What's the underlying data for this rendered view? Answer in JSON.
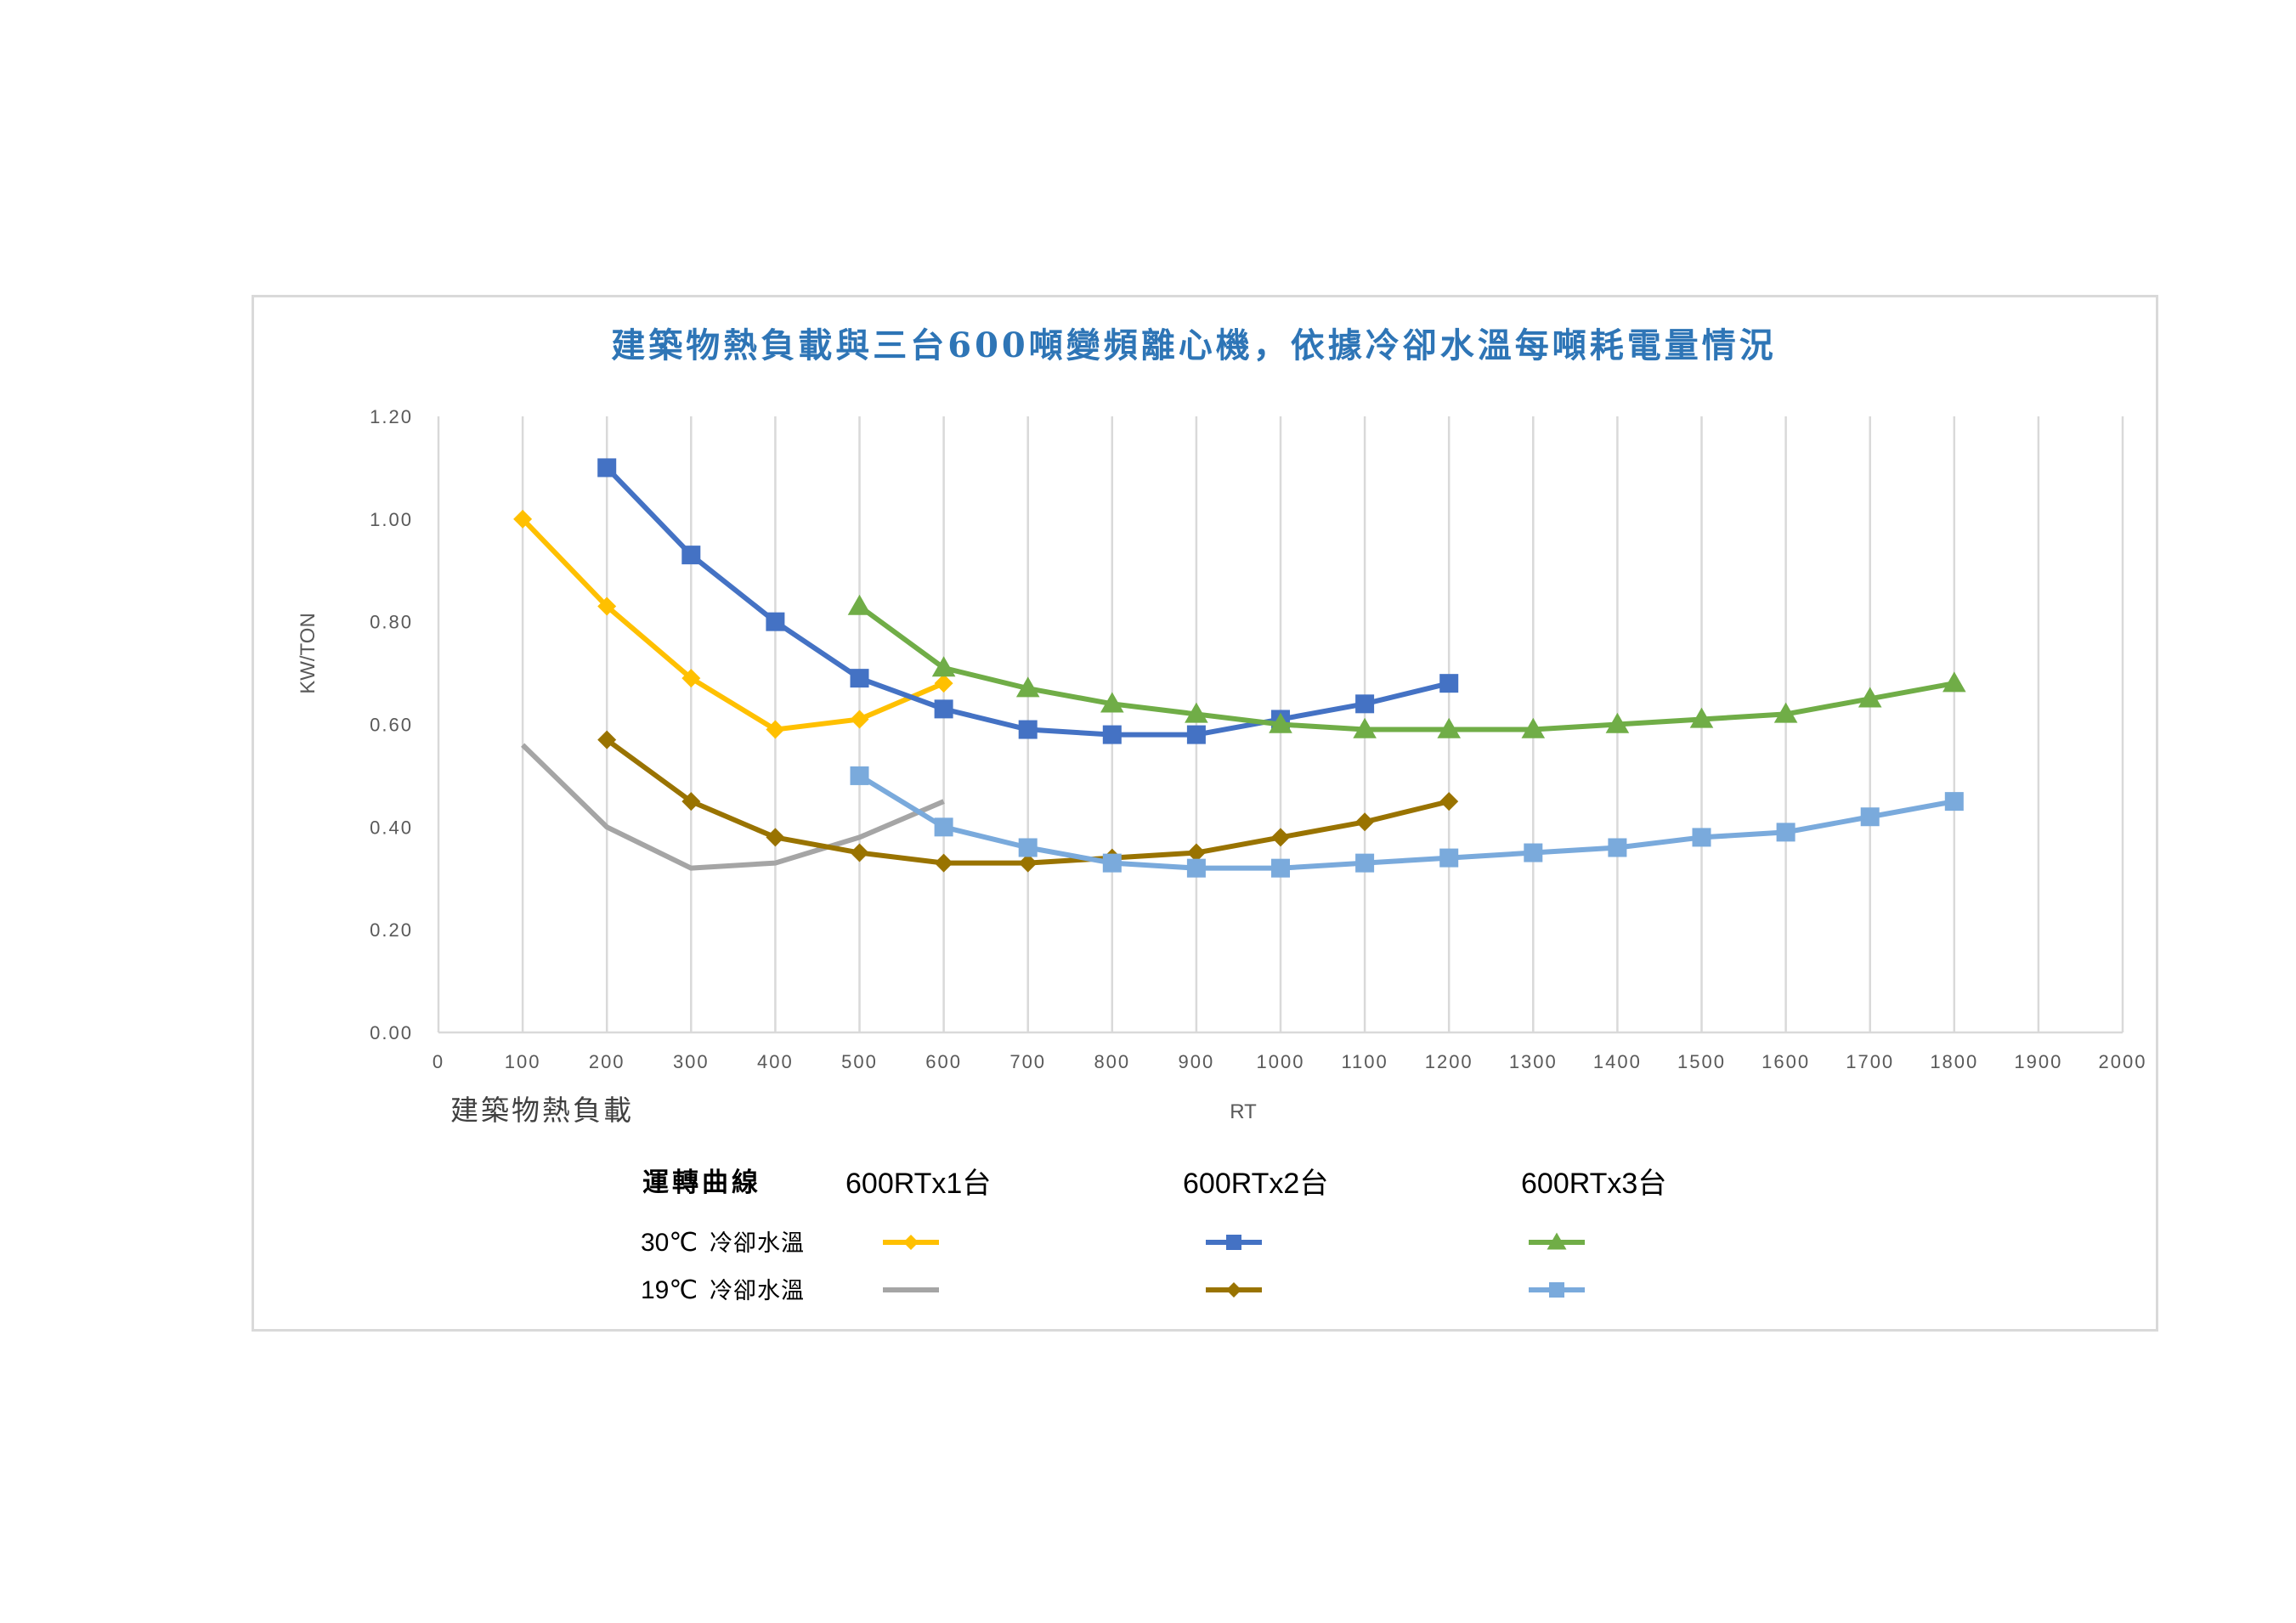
{
  "chart_data": {
    "type": "line",
    "title": "建築物熱負載與三台600噸變頻離心機，依據冷卻水溫每噸耗電量情況",
    "ylabel": "KW/TON",
    "xlabel": "RT",
    "xlabel_left": "建築物熱負載",
    "ylim": [
      0,
      1.2
    ],
    "xlim": [
      0,
      2000
    ],
    "yticks": [
      "0.00",
      "0.20",
      "0.40",
      "0.60",
      "0.80",
      "1.00",
      "1.20"
    ],
    "xticks": [
      "0",
      "100",
      "200",
      "300",
      "400",
      "500",
      "600",
      "700",
      "800",
      "900",
      "1000",
      "1100",
      "1200",
      "1300",
      "1400",
      "1500",
      "1600",
      "1700",
      "1800",
      "1900",
      "2000"
    ],
    "grid": "vertical",
    "series": [
      {
        "key": "s30_1",
        "color": "#ffc000",
        "marker": "diamond",
        "x": [
          100,
          200,
          300,
          400,
          500,
          600
        ],
        "y": [
          1.0,
          0.83,
          0.69,
          0.59,
          0.61,
          0.68
        ]
      },
      {
        "key": "s30_2",
        "color": "#4472c4",
        "marker": "square",
        "x": [
          200,
          300,
          400,
          500,
          600,
          700,
          800,
          900,
          1000,
          1100,
          1200
        ],
        "y": [
          1.1,
          0.93,
          0.8,
          0.69,
          0.63,
          0.59,
          0.58,
          0.58,
          0.61,
          0.64,
          0.68
        ]
      },
      {
        "key": "s30_3",
        "color": "#70ad47",
        "marker": "triangle",
        "x": [
          500,
          600,
          700,
          800,
          900,
          1000,
          1100,
          1200,
          1300,
          1400,
          1500,
          1600,
          1700,
          1800
        ],
        "y": [
          0.83,
          0.71,
          0.67,
          0.64,
          0.62,
          0.6,
          0.59,
          0.59,
          0.59,
          0.6,
          0.61,
          0.62,
          0.65,
          0.68
        ]
      },
      {
        "key": "s19_1",
        "color": "#a5a5a5",
        "marker": "none",
        "x": [
          100,
          200,
          300,
          400,
          500,
          600
        ],
        "y": [
          0.56,
          0.4,
          0.32,
          0.33,
          0.38,
          0.45
        ]
      },
      {
        "key": "s19_2",
        "color": "#997300",
        "marker": "diamond",
        "x": [
          200,
          300,
          400,
          500,
          600,
          700,
          800,
          900,
          1000,
          1100,
          1200
        ],
        "y": [
          0.57,
          0.45,
          0.38,
          0.35,
          0.33,
          0.33,
          0.34,
          0.35,
          0.38,
          0.41,
          0.45
        ]
      },
      {
        "key": "s19_3",
        "color": "#7aaadc",
        "marker": "square",
        "x": [
          500,
          600,
          700,
          800,
          900,
          1000,
          1100,
          1200,
          1300,
          1400,
          1500,
          1600,
          1700,
          1800
        ],
        "y": [
          0.5,
          0.4,
          0.36,
          0.33,
          0.32,
          0.32,
          0.33,
          0.34,
          0.35,
          0.36,
          0.38,
          0.39,
          0.42,
          0.45
        ]
      }
    ],
    "legend": {
      "header": "運轉曲線",
      "columns": [
        "600RTx1台",
        "600RTx2台",
        "600RTx3台"
      ],
      "rows": [
        {
          "label_temp": "30℃",
          "label_text": "冷卻水溫",
          "series": [
            "s30_1",
            "s30_2",
            "s30_3"
          ]
        },
        {
          "label_temp": "19℃",
          "label_text": "冷卻水溫",
          "series": [
            "s19_1",
            "s19_2",
            "s19_3"
          ]
        }
      ]
    }
  }
}
